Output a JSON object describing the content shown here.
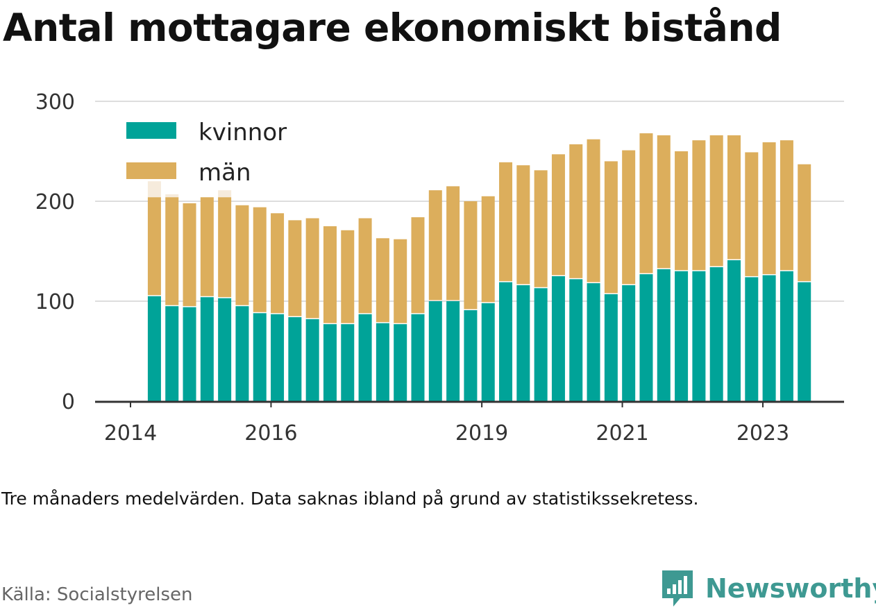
{
  "title": "Antal mottagare ekonomiskt bistånd",
  "note": "Tre månaders medelvärden. Data saknas ibland på grund av statistikssekretess.",
  "source": "Källa: Socialstyrelsen",
  "brand": "Newsworthy",
  "colors": {
    "kvinnor": "#00a398",
    "man": "#dcae5c",
    "faded": "#f6ebdc",
    "grid": "#dddddd",
    "axis": "#333333",
    "brand": "#3e9992"
  },
  "chart_data": {
    "type": "bar",
    "stacked": true,
    "ylim": [
      0,
      300
    ],
    "yticks": [
      0,
      100,
      200,
      300
    ],
    "x_ticks": [
      {
        "label": "2014",
        "x": 2014.0
      },
      {
        "label": "2016",
        "x": 2016.0
      },
      {
        "label": "2019",
        "x": 2019.0
      },
      {
        "label": "2021",
        "x": 2021.0
      },
      {
        "label": "2023",
        "x": 2023.0
      }
    ],
    "legend": {
      "position": "top-left",
      "entries": [
        "kvinnor",
        "män"
      ]
    },
    "grid": true,
    "x": [
      2014.34,
      2014.59,
      2014.84,
      2015.09,
      2015.34,
      2015.59,
      2015.84,
      2016.09,
      2016.34,
      2016.59,
      2016.84,
      2017.09,
      2017.34,
      2017.59,
      2017.84,
      2018.09,
      2018.34,
      2018.59,
      2018.84,
      2019.09,
      2019.34,
      2019.59,
      2019.84,
      2020.09,
      2020.34,
      2020.59,
      2020.84,
      2021.09,
      2021.34,
      2021.59,
      2021.84,
      2022.09,
      2022.34,
      2022.59,
      2022.84,
      2023.09,
      2023.34,
      2023.59
    ],
    "series": [
      {
        "name": "kvinnor",
        "values": [
          105,
          95,
          94,
          104,
          103,
          95,
          88,
          87,
          84,
          82,
          77,
          77,
          87,
          78,
          77,
          87,
          100,
          100,
          91,
          98,
          119,
          116,
          113,
          125,
          122,
          118,
          107,
          116,
          127,
          132,
          130,
          130,
          134,
          141,
          124,
          126,
          130,
          119
        ]
      },
      {
        "name": "män",
        "values": [
          99,
          109,
          104,
          100,
          101,
          101,
          106,
          101,
          97,
          101,
          98,
          94,
          96,
          85,
          85,
          97,
          111,
          115,
          109,
          107,
          120,
          120,
          118,
          122,
          135,
          144,
          133,
          135,
          141,
          134,
          120,
          131,
          132,
          125,
          125,
          133,
          131,
          118
        ]
      }
    ],
    "faded_extra": [
      16,
      3,
      0,
      0,
      7,
      0,
      0,
      0,
      0,
      0,
      0,
      0,
      0,
      0,
      0,
      0,
      0,
      0,
      0,
      0,
      0,
      0,
      0,
      0,
      0,
      0,
      0,
      0,
      0,
      0,
      0,
      0,
      0,
      0,
      0,
      0,
      0,
      0
    ]
  }
}
